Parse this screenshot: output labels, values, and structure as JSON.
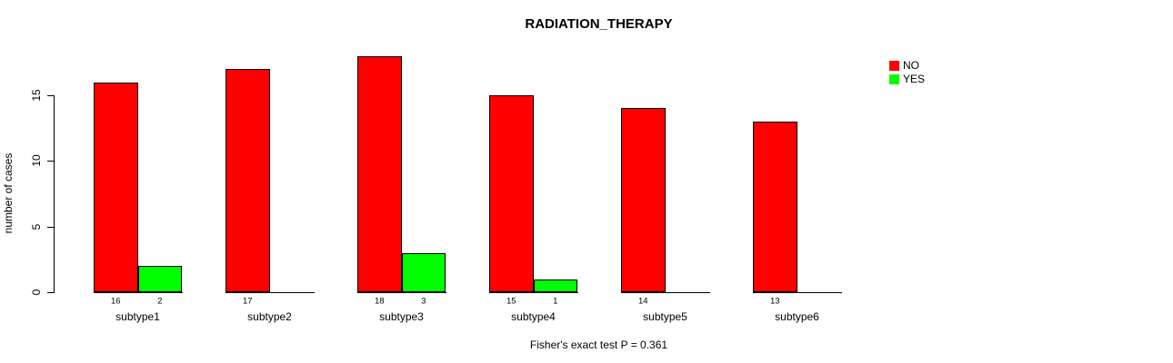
{
  "chart_data": {
    "type": "bar",
    "title": "RADIATION_THERAPY",
    "ylabel": "number of cases",
    "xlabel": "",
    "categories": [
      "subtype1",
      "subtype2",
      "subtype3",
      "subtype4",
      "subtype5",
      "subtype6"
    ],
    "series": [
      {
        "name": "NO",
        "color": "#FF0000",
        "values": [
          16,
          17,
          18,
          15,
          14,
          13
        ]
      },
      {
        "name": "YES",
        "color": "#00FF00",
        "values": [
          2,
          0,
          3,
          1,
          0,
          0
        ]
      }
    ],
    "yticks": [
      0,
      5,
      10,
      15
    ],
    "ylim": [
      0,
      18
    ],
    "grid": false,
    "legend_position": "top-right",
    "value_labels_shown": true,
    "zero_value_labels_hidden": true,
    "annotation": "Fisher's exact test P = 0.361",
    "background_color": "#FFFFFF",
    "axis_color": "#000000"
  }
}
